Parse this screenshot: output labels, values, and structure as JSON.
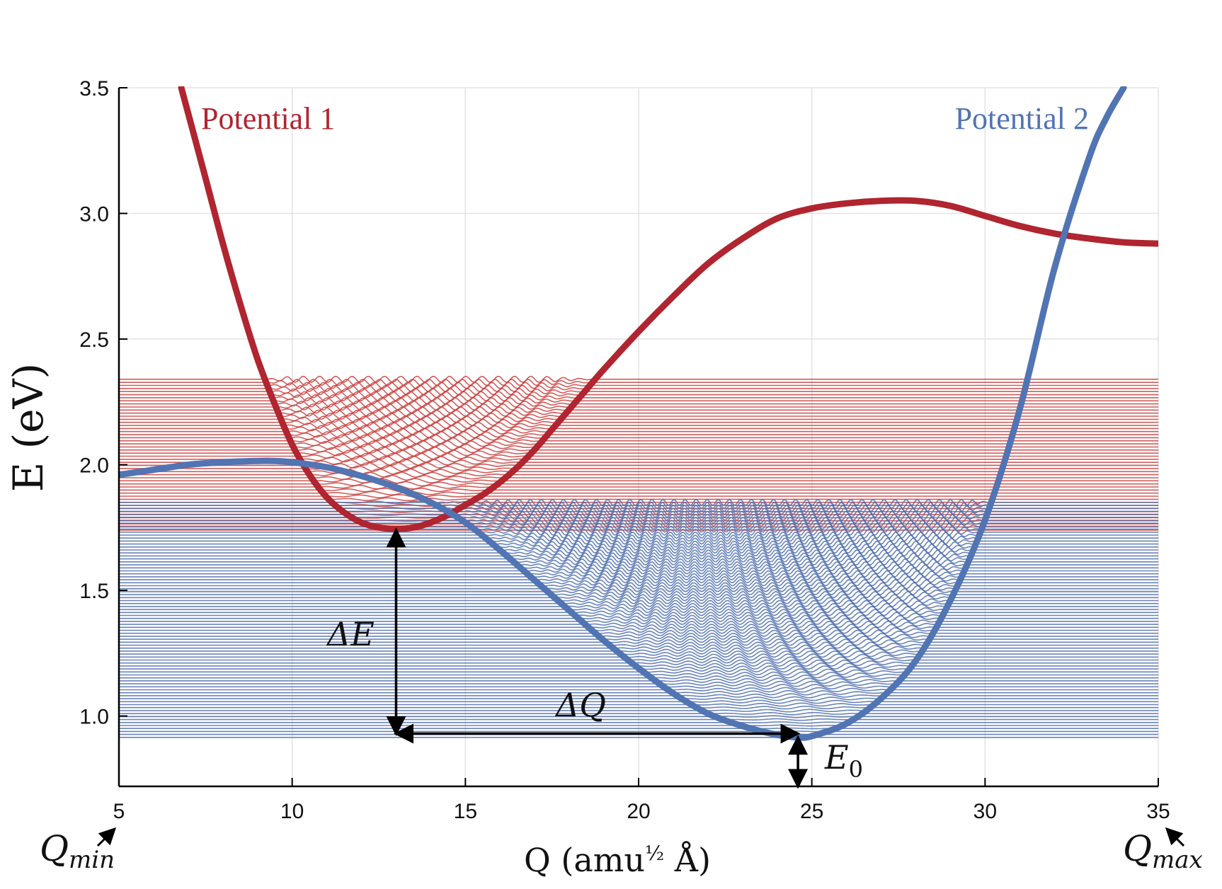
{
  "chart_data": {
    "type": "line",
    "title": "",
    "xlabel": "Q (amu½ Å)",
    "xlabel_main": "Q (amu",
    "xlabel_exp": "½",
    "xlabel_tail": " Å)",
    "ylabel": "E (eV)",
    "xlim": [
      5,
      35
    ],
    "ylim": [
      0.72,
      3.5
    ],
    "x_ticks": [
      5,
      10,
      15,
      20,
      25,
      30,
      35
    ],
    "y_ticks": [
      1.0,
      1.5,
      2.0,
      2.5,
      3.0,
      3.5
    ],
    "x_tick_labels": [
      "5",
      "10",
      "15",
      "20",
      "25",
      "30",
      "35"
    ],
    "y_tick_labels": [
      "1.0",
      "1.5",
      "2.0",
      "2.5",
      "3.0",
      "3.5"
    ],
    "grid": true,
    "series": [
      {
        "name": "Potential 1",
        "color": "#b0252f",
        "x": [
          6.8,
          7.5,
          8.0,
          8.5,
          9.0,
          9.5,
          10.0,
          10.5,
          11.0,
          11.5,
          12.0,
          12.5,
          13.0,
          13.5,
          14.0,
          14.5,
          15.0,
          15.5,
          16.0,
          16.5,
          17.0,
          17.5,
          18.0,
          18.5,
          19.0,
          20.0,
          21.0,
          22.0,
          23.0,
          24.0,
          25.0,
          26.0,
          27.0,
          28.0,
          29.0,
          30.0,
          31.0,
          32.0,
          33.0,
          34.0,
          35.0
        ],
        "y": [
          3.5,
          3.14,
          2.88,
          2.64,
          2.42,
          2.24,
          2.08,
          1.96,
          1.87,
          1.81,
          1.77,
          1.75,
          1.745,
          1.75,
          1.77,
          1.8,
          1.84,
          1.88,
          1.93,
          1.99,
          2.06,
          2.14,
          2.22,
          2.3,
          2.38,
          2.53,
          2.67,
          2.8,
          2.9,
          2.98,
          3.02,
          3.04,
          3.05,
          3.05,
          3.03,
          2.99,
          2.95,
          2.92,
          2.9,
          2.885,
          2.88
        ]
      },
      {
        "name": "Potential 2",
        "color": "#5174b3",
        "x": [
          5.0,
          6.0,
          7.0,
          8.0,
          9.0,
          9.5,
          10.0,
          11.0,
          12.0,
          13.0,
          14.0,
          15.0,
          16.0,
          17.0,
          18.0,
          19.0,
          20.0,
          21.0,
          22.0,
          23.0,
          24.0,
          24.6,
          25.0,
          26.0,
          27.0,
          28.0,
          29.0,
          30.0,
          31.0,
          32.0,
          33.0,
          33.5,
          34.0
        ],
        "y": [
          1.96,
          1.98,
          2.0,
          2.01,
          2.015,
          2.015,
          2.01,
          1.99,
          1.955,
          1.91,
          1.85,
          1.77,
          1.66,
          1.54,
          1.42,
          1.3,
          1.19,
          1.09,
          1.01,
          0.96,
          0.925,
          0.915,
          0.92,
          0.97,
          1.07,
          1.22,
          1.46,
          1.78,
          2.22,
          2.78,
          3.22,
          3.38,
          3.5
        ]
      }
    ],
    "level_bands": [
      {
        "name": "Potential 1 levels",
        "color": "#c9413f",
        "e_min": 1.74,
        "e_max": 2.34,
        "count": 50
      },
      {
        "name": "Potential 2 levels",
        "color": "#4f6fad",
        "e_min": 0.915,
        "e_max": 1.85,
        "count": 80
      }
    ],
    "annotations": [
      {
        "id": "delta-e",
        "text": "ΔE",
        "from": [
          13.0,
          0.93
        ],
        "to": [
          13.0,
          1.74
        ]
      },
      {
        "id": "delta-q",
        "text": "ΔQ",
        "from": [
          13.0,
          0.93
        ],
        "to": [
          24.6,
          0.93
        ]
      },
      {
        "id": "e0",
        "text": "E",
        "subscript": "0",
        "from": [
          24.6,
          0.72
        ],
        "to": [
          24.6,
          0.915
        ]
      },
      {
        "id": "q-min",
        "text": "Q",
        "subscript": "min",
        "points_to": 5
      },
      {
        "id": "q-max",
        "text": "Q",
        "subscript": "max",
        "points_to": 35
      }
    ]
  }
}
